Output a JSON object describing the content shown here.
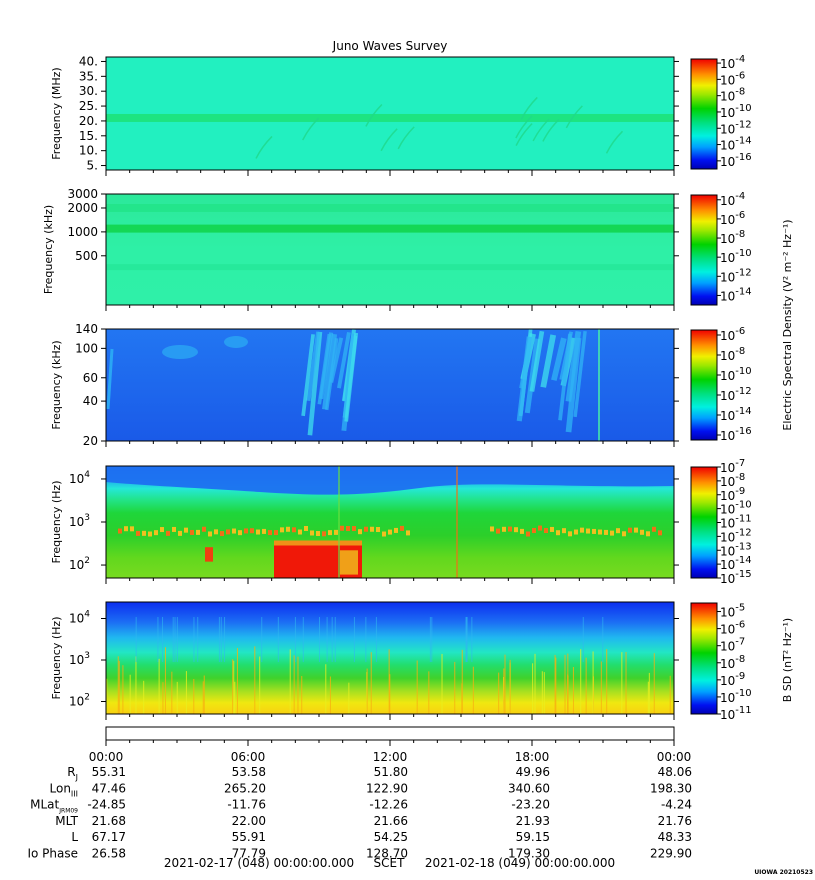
{
  "title": "Juno Waves Survey",
  "colorbar_label_e": "Electric Spectral Density (V² m⁻² Hz⁻¹)",
  "colorbar_label_b": "B SD (nT² Hz⁻¹)",
  "credit": "UIOWA 20210523",
  "chart_data": [
    {
      "type": "heatmap",
      "panel": "waves-high",
      "ylabel": "Frequency (MHz)",
      "yscale": "linear",
      "ylim": [
        3.5,
        41.5
      ],
      "yticks": [
        {
          "v": 5,
          "label": "5."
        },
        {
          "v": 10,
          "label": "10."
        },
        {
          "v": 15,
          "label": "15."
        },
        {
          "v": 20,
          "label": "20."
        },
        {
          "v": 25,
          "label": "25."
        },
        {
          "v": 30,
          "label": "30."
        },
        {
          "v": 35,
          "label": "35."
        },
        {
          "v": 40,
          "label": "40."
        }
      ],
      "cbar_ticks": [
        {
          "exp": -4,
          "label": "-4"
        },
        {
          "exp": -6,
          "label": "-6"
        },
        {
          "exp": -8,
          "label": "-8"
        },
        {
          "exp": -10,
          "label": "-10"
        },
        {
          "exp": -12,
          "label": "-12"
        },
        {
          "exp": -14,
          "label": "-14"
        },
        {
          "exp": -16,
          "label": "-16"
        }
      ],
      "cbar_range": [
        -17,
        -3.5
      ],
      "background": "#22f0c0",
      "bands": [
        {
          "y": 21,
          "color": "#1de27a"
        }
      ]
    },
    {
      "type": "heatmap",
      "panel": "waves-mid",
      "ylabel": "Frequency (kHz)",
      "yscale": "log",
      "ylim": [
        120,
        3000
      ],
      "yticks": [
        {
          "v": 500,
          "label": "500"
        },
        {
          "v": 1000,
          "label": "1000"
        },
        {
          "v": 2000,
          "label": "2000"
        },
        {
          "v": 3000,
          "label": "3000"
        }
      ],
      "cbar_ticks": [
        {
          "exp": -4,
          "label": "-4"
        },
        {
          "exp": -6,
          "label": "-6"
        },
        {
          "exp": -8,
          "label": "-8"
        },
        {
          "exp": -10,
          "label": "-10"
        },
        {
          "exp": -12,
          "label": "-12"
        },
        {
          "exp": -14,
          "label": "-14"
        }
      ],
      "cbar_range": [
        -15,
        -3.5
      ],
      "background": "#2df0a0",
      "bands": [
        {
          "y": 1100,
          "color": "#12d44e"
        },
        {
          "y": 2000,
          "color": "#22e48a"
        }
      ]
    },
    {
      "type": "heatmap",
      "panel": "waves-low",
      "ylabel": "Frequency (kHz)",
      "yscale": "log",
      "ylim": [
        20,
        140
      ],
      "yticks": [
        {
          "v": 20,
          "label": "20"
        },
        {
          "v": 40,
          "label": "40"
        },
        {
          "v": 60,
          "label": "60"
        },
        {
          "v": 100,
          "label": "100"
        },
        {
          "v": 140,
          "label": "140"
        }
      ],
      "cbar_ticks": [
        {
          "exp": -6,
          "label": "-6"
        },
        {
          "exp": -8,
          "label": "-8"
        },
        {
          "exp": -10,
          "label": "-10"
        },
        {
          "exp": -12,
          "label": "-12"
        },
        {
          "exp": -14,
          "label": "-14"
        },
        {
          "exp": -16,
          "label": "-16"
        }
      ],
      "cbar_range": [
        -16.5,
        -5.5
      ],
      "background": "#1e6af0",
      "bursts": [
        {
          "x0": 7.5,
          "x1": 10.5
        },
        {
          "x0": 17.5,
          "x1": 20
        }
      ]
    },
    {
      "type": "heatmap",
      "panel": "electric-lf",
      "ylabel": "Frequency (Hz)",
      "yscale": "log",
      "ylim": [
        50,
        20000
      ],
      "yticks": [
        {
          "v": 100,
          "label": "10",
          "exp": "2"
        },
        {
          "v": 1000,
          "label": "10",
          "exp": "3"
        },
        {
          "v": 10000,
          "label": "10",
          "exp": "4"
        }
      ],
      "cbar_ticks": [
        {
          "exp": -7,
          "label": "-7"
        },
        {
          "exp": -8,
          "label": "-8"
        },
        {
          "exp": -9,
          "label": "-9"
        },
        {
          "exp": -10,
          "label": "-10"
        },
        {
          "exp": -11,
          "label": "-11"
        },
        {
          "exp": -12,
          "label": "-12"
        },
        {
          "exp": -13,
          "label": "-13"
        },
        {
          "exp": -14,
          "label": "-14"
        },
        {
          "exp": -15,
          "label": "-15"
        }
      ],
      "cbar_range": [
        -15,
        -7
      ],
      "background": "#21d24f"
    },
    {
      "type": "heatmap",
      "panel": "magnetic-lf",
      "ylabel": "Frequency (Hz)",
      "yscale": "log",
      "ylim": [
        50,
        25000
      ],
      "yticks": [
        {
          "v": 100,
          "label": "10",
          "exp": "2"
        },
        {
          "v": 1000,
          "label": "10",
          "exp": "3"
        },
        {
          "v": 10000,
          "label": "10",
          "exp": "4"
        }
      ],
      "cbar_ticks": [
        {
          "exp": -5,
          "label": "-5"
        },
        {
          "exp": -6,
          "label": "-6"
        },
        {
          "exp": -7,
          "label": "-7"
        },
        {
          "exp": -8,
          "label": "-8"
        },
        {
          "exp": -9,
          "label": "-9"
        },
        {
          "exp": -10,
          "label": "-10"
        },
        {
          "exp": -11,
          "label": "-11"
        }
      ],
      "cbar_range": [
        -11,
        -4.5
      ],
      "background": "#22d050"
    }
  ],
  "time_axis": {
    "xlim_hours": [
      0,
      24
    ],
    "ticks": [
      {
        "h": 0,
        "label": "00:00"
      },
      {
        "h": 6,
        "label": "06:00"
      },
      {
        "h": 12,
        "label": "12:00"
      },
      {
        "h": 18,
        "label": "18:00"
      },
      {
        "h": 24,
        "label": "00:00"
      }
    ]
  },
  "ephemeris": [
    {
      "label": "R",
      "sub": "J",
      "values": [
        "55.31",
        "53.58",
        "51.80",
        "49.96",
        "48.06"
      ]
    },
    {
      "label": "Lon",
      "sub": "III",
      "values": [
        "47.46",
        "265.20",
        "122.90",
        "340.60",
        "198.30"
      ]
    },
    {
      "label": "MLat",
      "sub": "JRM09",
      "values": [
        "-24.85",
        "-11.76",
        "-12.26",
        "-23.20",
        "-4.24"
      ]
    },
    {
      "label": "MLT",
      "sub": "",
      "values": [
        "21.68",
        "22.00",
        "21.66",
        "21.93",
        "21.76"
      ]
    },
    {
      "label": "L",
      "sub": "",
      "values": [
        "67.17",
        "55.91",
        "54.25",
        "59.15",
        "48.33"
      ]
    },
    {
      "label": "Io Phase",
      "sub": "",
      "values": [
        "26.58",
        "77.79",
        "128.70",
        "179.30",
        "229.90"
      ]
    }
  ],
  "footer": {
    "start": "2021-02-17 (048) 00:00:00.000",
    "scet": "SCET",
    "end": "2021-02-18 (049) 00:00:00.000"
  }
}
